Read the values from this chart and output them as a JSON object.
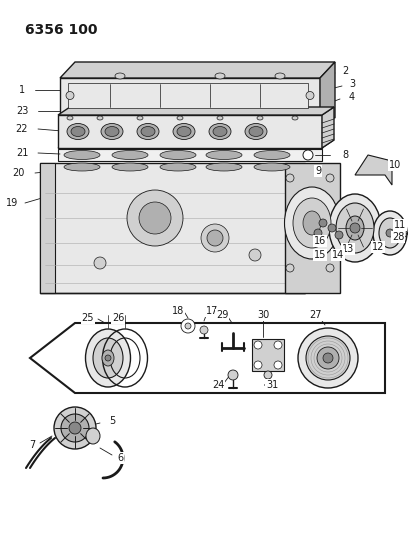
{
  "title": "6356 100",
  "bg_color": "#ffffff",
  "line_color": "#1a1a1a",
  "label_color": "#1a1a1a",
  "title_fontsize": 10,
  "label_fontsize": 7,
  "figsize": [
    4.08,
    5.33
  ],
  "dpi": 100,
  "gray_light": "#e8e8e8",
  "gray_mid": "#d0d0d0",
  "gray_dark": "#b0b0b0",
  "white": "#ffffff"
}
